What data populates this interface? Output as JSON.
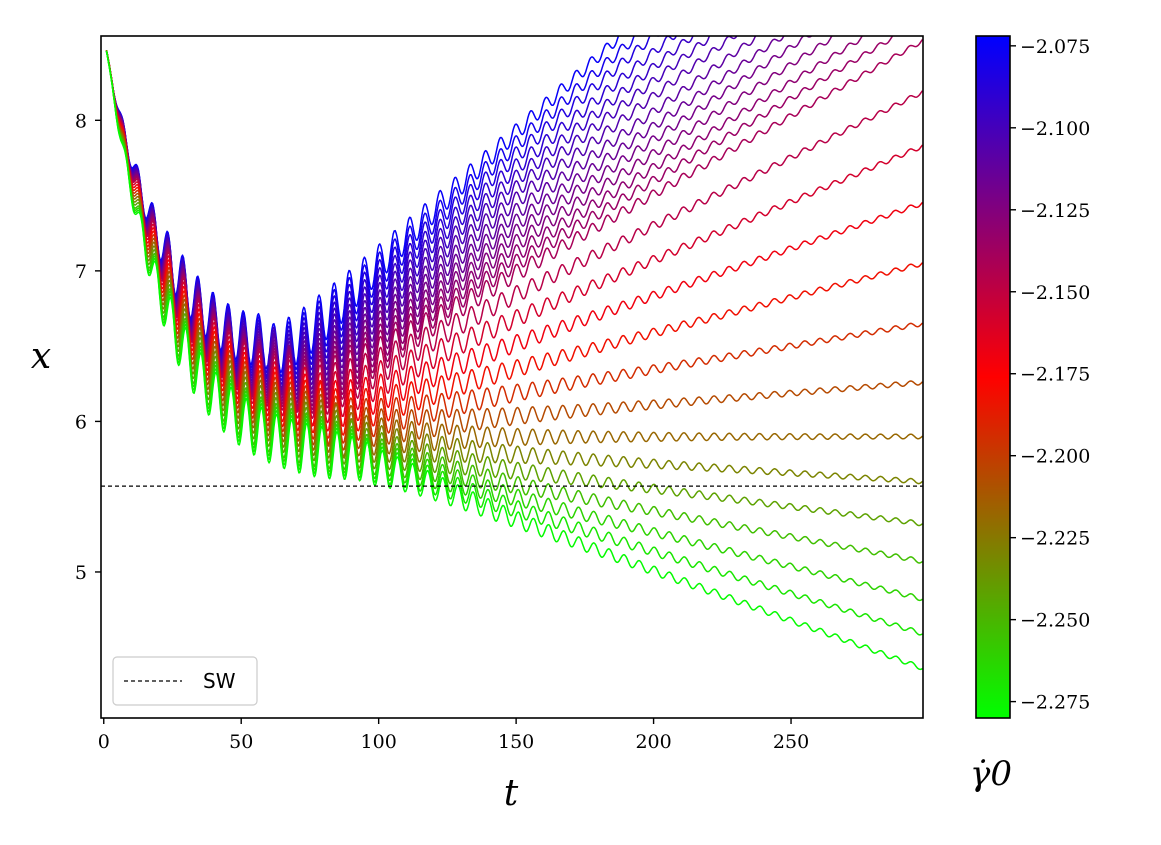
{
  "chart_data": {
    "type": "line",
    "xlabel": "t",
    "ylabel": "x",
    "xlim": [
      -1,
      298
    ],
    "ylim": [
      4.03,
      8.56
    ],
    "xticks": [
      0,
      50,
      100,
      150,
      200,
      250
    ],
    "yticks": [
      5,
      6,
      7,
      8
    ],
    "xtick_labels": [
      "0",
      "50",
      "100",
      "150",
      "200",
      "250"
    ],
    "ytick_labels": [
      "5",
      "6",
      "7",
      "8"
    ],
    "grid": false,
    "legend": {
      "placement": "lower-left",
      "entries": [
        {
          "label": "SW",
          "style": "dashed",
          "color": "#000000"
        }
      ]
    },
    "reference_line": {
      "label": "SW",
      "y": 5.57,
      "style": "dashed",
      "color": "#000000"
    },
    "series_common": {
      "t_start": 1,
      "x_start": 8.46,
      "oscillation_period": 5.5
    },
    "series": [
      {
        "gamma0": -2.075,
        "exit_t": 188,
        "x_end": null
      },
      {
        "gamma0": -2.08,
        "exit_t": 194,
        "x_end": null
      },
      {
        "gamma0": -2.085,
        "exit_t": 200,
        "x_end": null
      },
      {
        "gamma0": -2.09,
        "exit_t": 207,
        "x_end": null
      },
      {
        "gamma0": -2.095,
        "exit_t": 214,
        "x_end": null
      },
      {
        "gamma0": -2.1,
        "exit_t": 221,
        "x_end": null
      },
      {
        "gamma0": -2.105,
        "exit_t": 229,
        "x_end": null
      },
      {
        "gamma0": -2.11,
        "exit_t": 238,
        "x_end": null
      },
      {
        "gamma0": -2.115,
        "exit_t": 247,
        "x_end": null
      },
      {
        "gamma0": -2.12,
        "exit_t": 256,
        "x_end": null
      },
      {
        "gamma0": -2.125,
        "exit_t": 266,
        "x_end": null
      },
      {
        "gamma0": -2.13,
        "exit_t": 277,
        "x_end": null
      },
      {
        "gamma0": -2.135,
        "exit_t": 288,
        "x_end": null
      },
      {
        "gamma0": -2.14,
        "exit_t": null,
        "x_end": 8.53
      },
      {
        "gamma0": -2.147,
        "exit_t": null,
        "x_end": 8.19
      },
      {
        "gamma0": -2.158,
        "exit_t": null,
        "x_end": 7.83
      },
      {
        "gamma0": -2.17,
        "exit_t": null,
        "x_end": 7.45
      },
      {
        "gamma0": -2.182,
        "exit_t": null,
        "x_end": 7.05
      },
      {
        "gamma0": -2.194,
        "exit_t": null,
        "x_end": 6.65
      },
      {
        "gamma0": -2.206,
        "exit_t": null,
        "x_end": 6.26
      },
      {
        "gamma0": -2.218,
        "exit_t": null,
        "x_end": 5.9
      },
      {
        "gamma0": -2.23,
        "exit_t": null,
        "x_end": 5.6
      },
      {
        "gamma0": -2.242,
        "exit_t": null,
        "x_end": 5.32
      },
      {
        "gamma0": -2.254,
        "exit_t": null,
        "x_end": 5.07
      },
      {
        "gamma0": -2.262,
        "exit_t": null,
        "x_end": 4.82
      },
      {
        "gamma0": -2.27,
        "exit_t": null,
        "x_end": 4.59
      },
      {
        "gamma0": -2.278,
        "exit_t": null,
        "x_end": 4.36
      }
    ],
    "colorbar": {
      "label": "γ̇0",
      "range": [
        -2.28,
        -2.072
      ],
      "ticks": [
        -2.275,
        -2.25,
        -2.225,
        -2.2,
        -2.175,
        -2.15,
        -2.125,
        -2.1,
        -2.075
      ],
      "tick_labels": [
        "−2.275",
        "−2.250",
        "−2.225",
        "−2.200",
        "−2.175",
        "−2.150",
        "−2.125",
        "−2.100",
        "−2.075"
      ],
      "colors": {
        "low": "#00ff00",
        "mid": "#ff0000",
        "high": "#0000ff"
      },
      "mid_value": -2.175
    }
  }
}
